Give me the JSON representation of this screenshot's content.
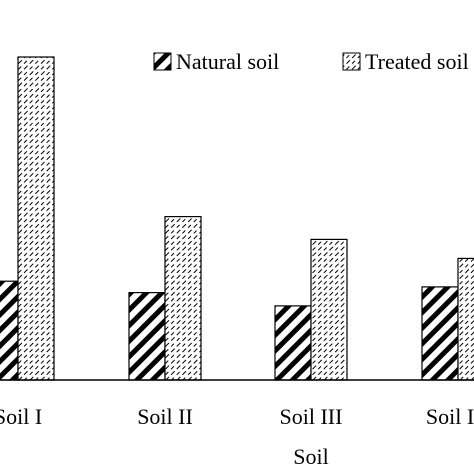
{
  "chart_data": {
    "type": "bar",
    "xlabel": "Soil",
    "categories": [
      "Soil I",
      "Soil II",
      "Soil III",
      "Soil IV"
    ],
    "series": [
      {
        "name": "Natural soil",
        "pattern": "diagonal-hatch",
        "values": [
          26,
          23,
          19.5,
          24.5
        ]
      },
      {
        "name": "Treated soil",
        "pattern": "dashed-hatch",
        "values": [
          85,
          43,
          37,
          32
        ]
      }
    ],
    "ylim": [
      0,
      100
    ],
    "legend_position": "top-right",
    "grid": false
  },
  "colors": {
    "bar_stroke": "#000000",
    "background": "#ffffff"
  }
}
